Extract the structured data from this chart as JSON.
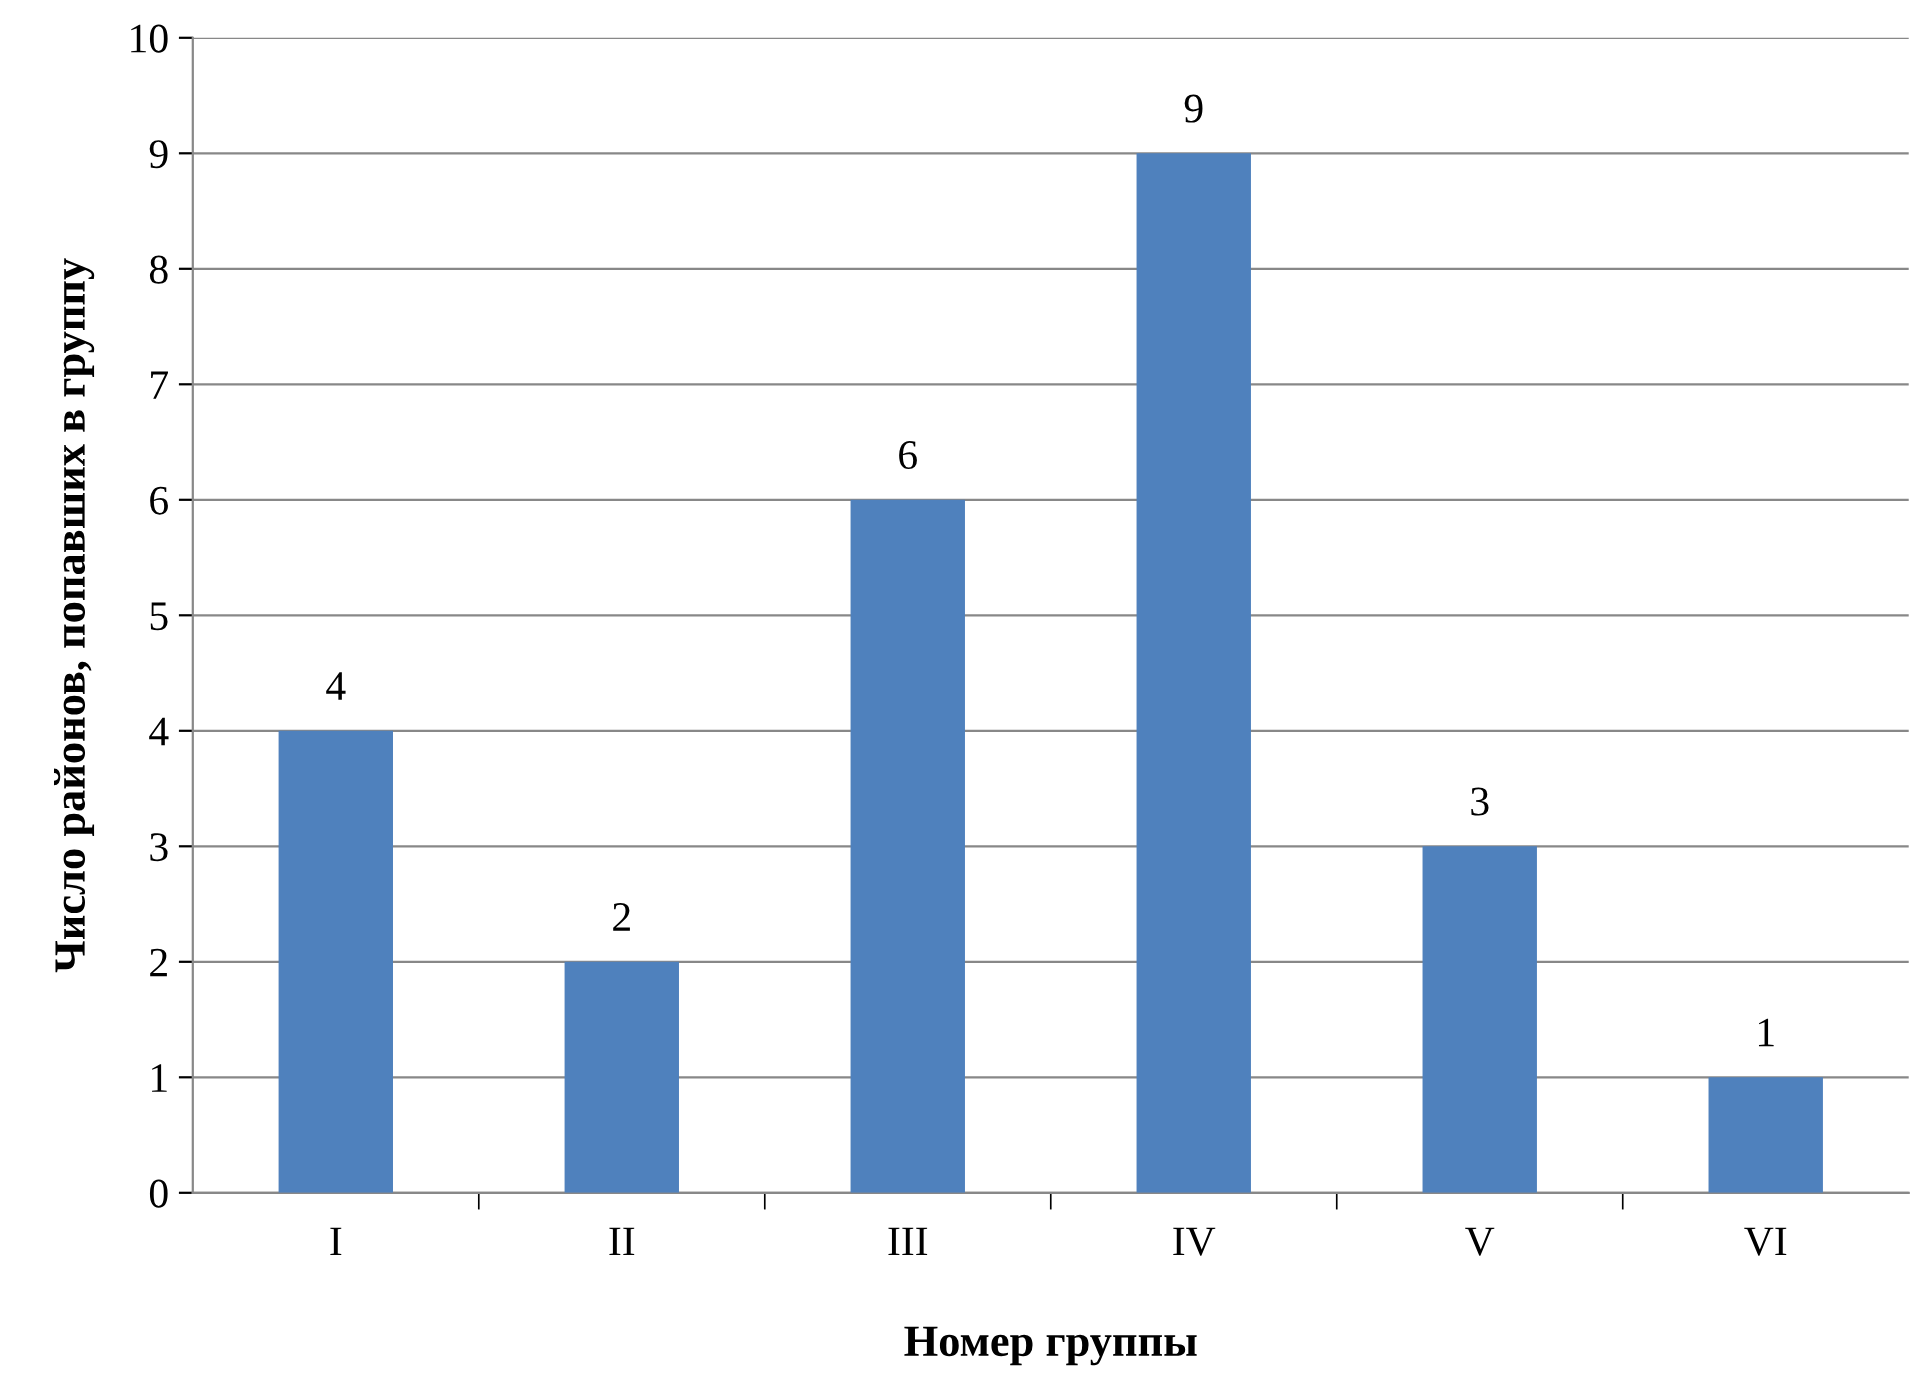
{
  "chart_data": {
    "type": "bar",
    "xlabel": "Номер группы",
    "ylabel": "Число районов, попавших в группу",
    "categories": [
      "I",
      "II",
      "III",
      "IV",
      "V",
      "VI"
    ],
    "values": [
      4,
      2,
      6,
      9,
      3,
      1
    ],
    "color": "#4f81bd",
    "ylim": [
      0,
      10
    ],
    "yticks": [
      0,
      1,
      2,
      3,
      4,
      5,
      6,
      7,
      8,
      9,
      10
    ],
    "grid": "y",
    "data_labels": true
  }
}
